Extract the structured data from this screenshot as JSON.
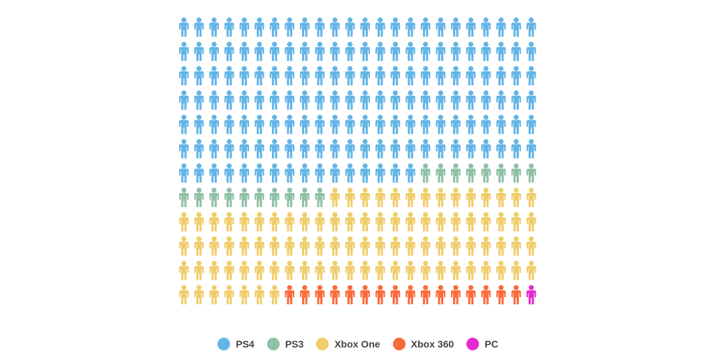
{
  "chart_data": {
    "type": "waffle",
    "unit": "person",
    "title": "",
    "columns": 24,
    "rows": 12,
    "series": [
      {
        "name": "PS4",
        "value": 160,
        "color": "#64b5e6"
      },
      {
        "name": "PS3",
        "value": 18,
        "color": "#8fc1a5"
      },
      {
        "name": "Xbox One",
        "value": 93,
        "color": "#f0cd6b"
      },
      {
        "name": "Xbox 360",
        "value": 16,
        "color": "#fa6b3c"
      },
      {
        "name": "PC",
        "value": 1,
        "color": "#e62ad2"
      }
    ]
  },
  "legend": {
    "items": [
      {
        "label": "PS4",
        "color": "#64b5e6"
      },
      {
        "label": "PS3",
        "color": "#8fc1a5"
      },
      {
        "label": "Xbox One",
        "color": "#f0cd6b"
      },
      {
        "label": "Xbox 360",
        "color": "#fa6b3c"
      },
      {
        "label": "PC",
        "color": "#e62ad2"
      }
    ]
  }
}
